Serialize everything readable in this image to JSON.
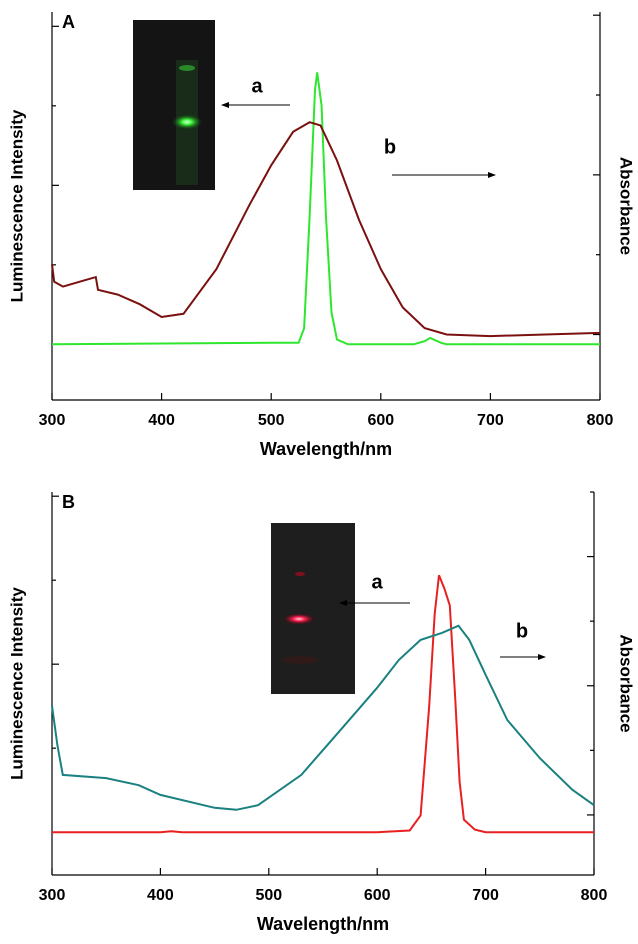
{
  "chart_data": [
    {
      "type": "line",
      "panel_label": "A",
      "xlabel": "Wavelength/nm",
      "ylabel": "Luminescence Intensity",
      "y2label": "Absorbance",
      "xlim": [
        300,
        800
      ],
      "xticks": [
        300,
        400,
        500,
        600,
        700,
        800
      ],
      "ylim": [
        -0.35,
        2.09
      ],
      "yticks": [
        0,
        0.5,
        1,
        1.5,
        2
      ],
      "y2lim": [
        -0.41,
        2.02
      ],
      "y2ticks": [
        0,
        0.5,
        1,
        1.5,
        2
      ],
      "series": [
        {
          "name": "a",
          "color": "#2ee62e",
          "x": [
            300,
            500,
            525,
            530,
            535,
            540,
            542,
            546,
            550,
            555,
            560,
            570,
            630,
            640,
            645,
            655,
            660,
            800
          ],
          "values": [
            0,
            0.01,
            0.01,
            0.1,
            0.8,
            1.6,
            1.71,
            1.5,
            0.8,
            0.2,
            0.03,
            0,
            0,
            0.02,
            0.04,
            0.01,
            0,
            0
          ]
        },
        {
          "name": "b",
          "color": "#7a1010",
          "axis": "y2",
          "x": [
            300,
            302,
            310,
            330,
            340,
            342,
            360,
            380,
            400,
            420,
            450,
            480,
            500,
            520,
            535,
            545,
            560,
            580,
            600,
            620,
            640,
            660,
            700,
            750,
            800
          ],
          "values": [
            0.44,
            0.33,
            0.3,
            0.34,
            0.36,
            0.28,
            0.25,
            0.19,
            0.11,
            0.13,
            0.41,
            0.81,
            1.06,
            1.27,
            1.33,
            1.31,
            1.09,
            0.72,
            0.41,
            0.17,
            0.04,
            0,
            -0.01,
            0,
            0.01
          ]
        }
      ]
    },
    {
      "type": "line",
      "panel_label": "B",
      "xlabel": "Wavelength/nm",
      "ylabel": "Luminescence Intensity",
      "y2label": "Absorbance",
      "xlim": [
        300,
        800
      ],
      "xticks": [
        300,
        400,
        500,
        600,
        700,
        800
      ],
      "ylim": [
        -0.51,
        4.05
      ],
      "yticks": [
        0,
        1,
        2,
        3,
        4
      ],
      "y2lim": [
        -0.93,
        5.0
      ],
      "y2ticks": [
        0,
        1,
        2,
        3,
        4,
        5
      ],
      "series": [
        {
          "name": "a",
          "color": "#e82020",
          "x": [
            300,
            400,
            410,
            420,
            600,
            630,
            640,
            648,
            653,
            657,
            662,
            667,
            672,
            676,
            680,
            690,
            700,
            800
          ],
          "values": [
            0,
            0,
            0.01,
            0,
            0,
            0.02,
            0.2,
            1.5,
            2.6,
            3.06,
            2.9,
            2.7,
            1.6,
            0.6,
            0.15,
            0.03,
            0,
            0
          ]
        },
        {
          "name": "b",
          "color": "#1a8080",
          "axis": "y2",
          "x": [
            300,
            305,
            310,
            350,
            380,
            400,
            450,
            470,
            490,
            530,
            570,
            600,
            620,
            640,
            660,
            675,
            685,
            700,
            720,
            750,
            780,
            800
          ],
          "values": [
            1.69,
            1.08,
            0.62,
            0.57,
            0.46,
            0.31,
            0.11,
            0.08,
            0.15,
            0.62,
            1.39,
            1.97,
            2.4,
            2.71,
            2.82,
            2.93,
            2.71,
            2.17,
            1.47,
            0.88,
            0.39,
            0.15
          ]
        }
      ]
    }
  ]
}
